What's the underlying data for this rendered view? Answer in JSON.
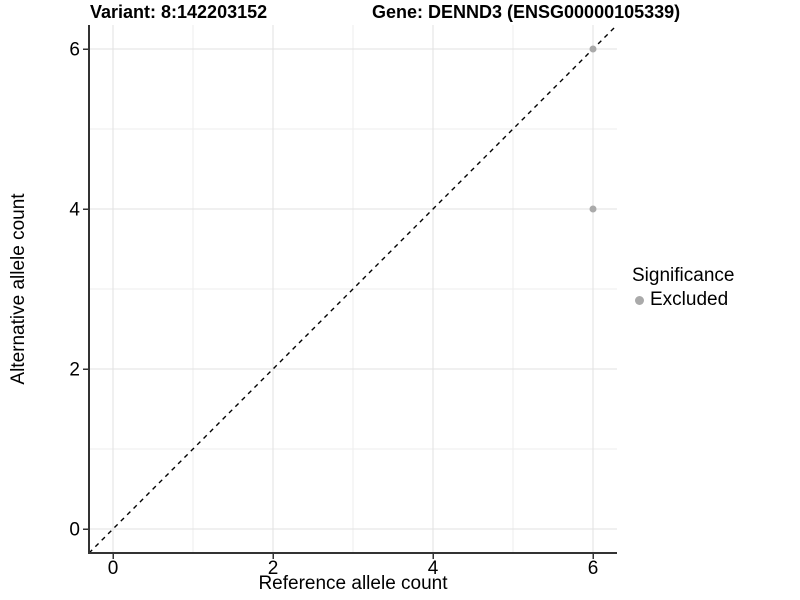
{
  "chart_data": {
    "type": "scatter",
    "title_left": "Variant: 8:142203152",
    "title_right": "Gene: DENND3 (ENSG00000105339)",
    "xlabel": "Reference allele count",
    "ylabel": "Alternative allele count",
    "xlim": [
      -0.3,
      6.3
    ],
    "ylim": [
      -0.3,
      6.3
    ],
    "major_ticks": [
      0,
      2,
      4,
      6
    ],
    "minor_ticks": [
      1,
      3,
      5
    ],
    "grid": "on",
    "identity_line": {
      "style": "dashed",
      "color": "#000000",
      "from": [
        -0.3,
        -0.3
      ],
      "to": [
        6.3,
        6.3
      ]
    },
    "series": [
      {
        "name": "Excluded",
        "color": "#aaaaaa",
        "point_px_radius": 3.5,
        "points": [
          [
            6,
            4
          ],
          [
            6,
            6
          ]
        ]
      }
    ],
    "legend": {
      "title": "Significance",
      "position": "right-center",
      "items": [
        {
          "label": "Excluded",
          "color": "#aaaaaa"
        }
      ]
    }
  },
  "colors": {
    "background": "#ffffff",
    "grid_major": "#e2e2e2",
    "grid_minor": "#eeeeee",
    "axis": "#333333",
    "tick_text": "#000000",
    "title_text": "#000000"
  }
}
